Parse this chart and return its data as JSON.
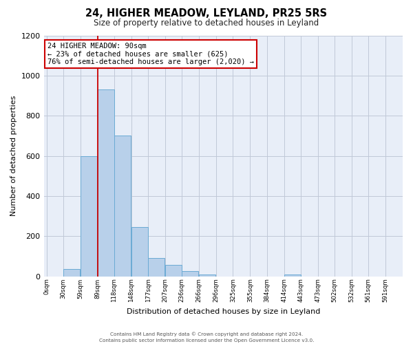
{
  "title": "24, HIGHER MEADOW, LEYLAND, PR25 5RS",
  "subtitle": "Size of property relative to detached houses in Leyland",
  "xlabel": "Distribution of detached houses by size in Leyland",
  "ylabel": "Number of detached properties",
  "bin_width": 29,
  "bin_starts": [
    0,
    29,
    59,
    89,
    118,
    148,
    177,
    207,
    236,
    266,
    296,
    325,
    355,
    384,
    414,
    443,
    473,
    502,
    532,
    561,
    591
  ],
  "bar_values": [
    0,
    35,
    598,
    930,
    700,
    245,
    90,
    55,
    25,
    10,
    0,
    0,
    0,
    0,
    10,
    0,
    0,
    0,
    0,
    0,
    0
  ],
  "tick_labels": [
    "0sqm",
    "30sqm",
    "59sqm",
    "89sqm",
    "118sqm",
    "148sqm",
    "177sqm",
    "207sqm",
    "236sqm",
    "266sqm",
    "296sqm",
    "325sqm",
    "355sqm",
    "384sqm",
    "414sqm",
    "443sqm",
    "473sqm",
    "502sqm",
    "532sqm",
    "561sqm",
    "591sqm"
  ],
  "bar_color": "#b8d0ea",
  "bar_edge_color": "#6aaad4",
  "bg_color": "#e8eef8",
  "grid_color": "#c0c8d8",
  "property_line_x": 89,
  "annotation_text_line1": "24 HIGHER MEADOW: 90sqm",
  "annotation_text_line2": "← 23% of detached houses are smaller (625)",
  "annotation_text_line3": "76% of semi-detached houses are larger (2,020) →",
  "annotation_box_facecolor": "#ffffff",
  "annotation_box_edgecolor": "#cc0000",
  "footer_line1": "Contains HM Land Registry data © Crown copyright and database right 2024.",
  "footer_line2": "Contains public sector information licensed under the Open Government Licence v3.0.",
  "ylim": [
    0,
    1200
  ],
  "yticks": [
    0,
    200,
    400,
    600,
    800,
    1000,
    1200
  ],
  "xlim_left": -5,
  "xlim_right": 621
}
